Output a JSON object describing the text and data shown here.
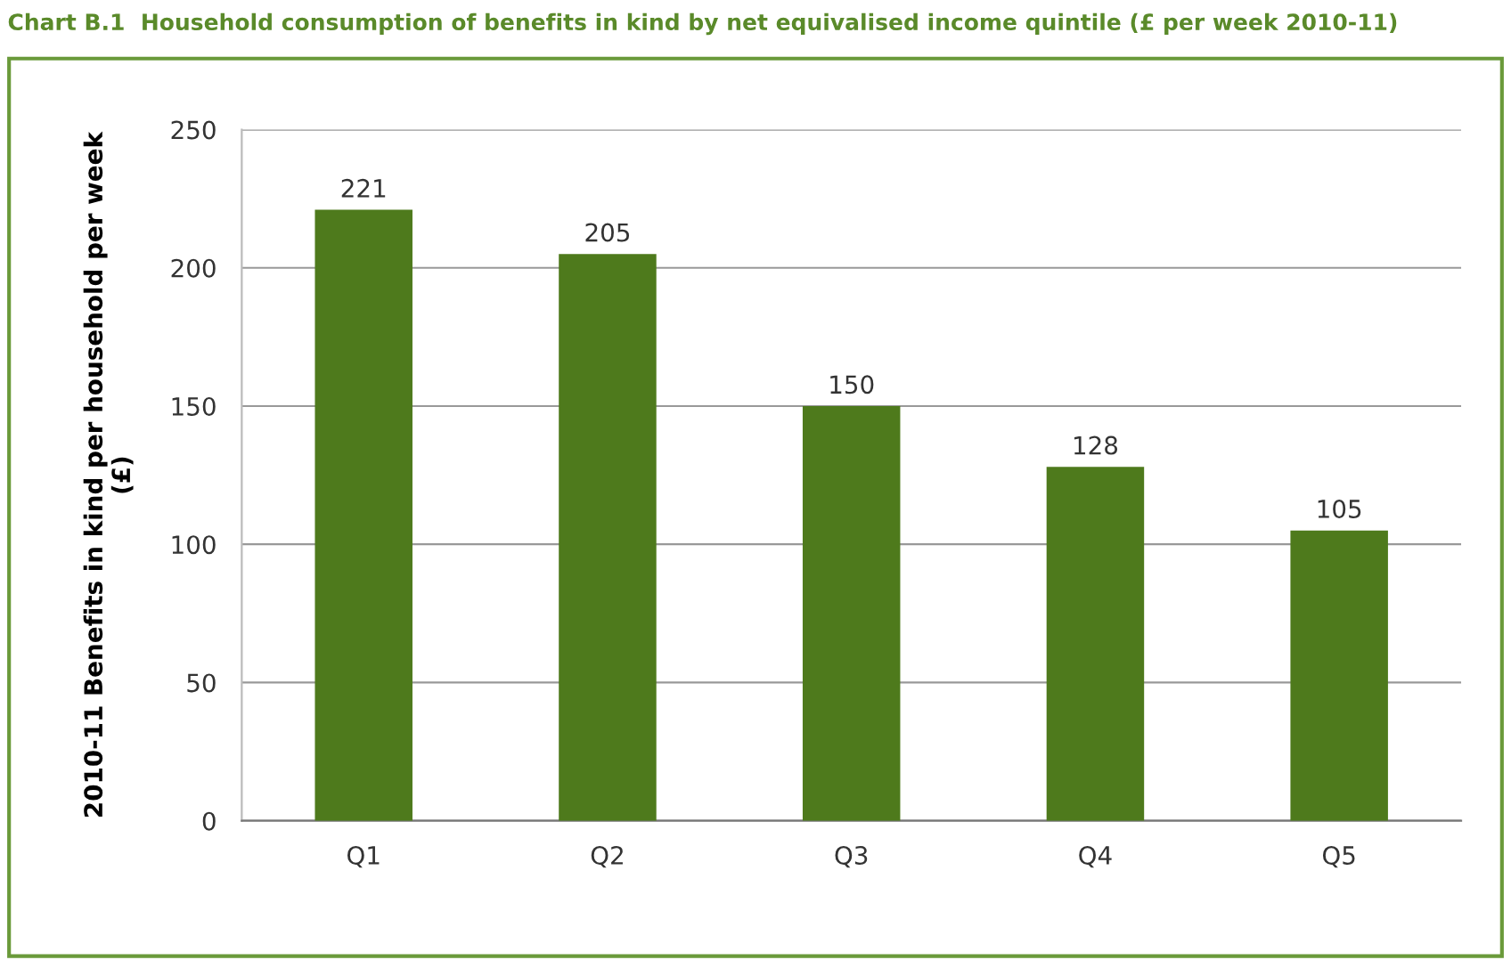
{
  "chart_data": {
    "type": "bar",
    "title": "Chart B.1  Household consumption of benefits in kind by net equivalised income quintile (£ per week 2010-11)",
    "ylabel": "2010-11 Benefits in kind per household per week\n(£)",
    "categories": [
      "Q1",
      "Q2",
      "Q3",
      "Q4",
      "Q5"
    ],
    "values": [
      221,
      205,
      150,
      128,
      105
    ],
    "color": "#4e7a1c",
    "ylim": [
      0,
      250
    ],
    "yticks": [
      0,
      50,
      100,
      150,
      200,
      250
    ],
    "grid": "y",
    "data_labels": true,
    "legend": false
  }
}
